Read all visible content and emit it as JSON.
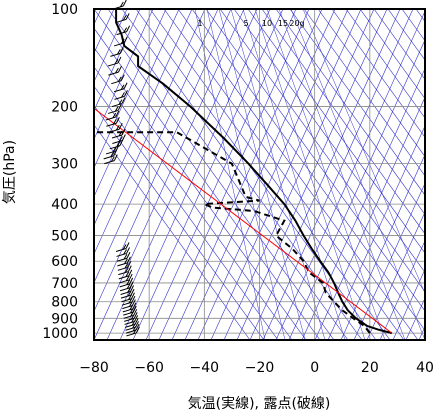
{
  "chart_data": {
    "type": "line",
    "xlabel": "気温(実線), 露点(破線)",
    "ylabel": "気圧(hPa)",
    "xlim": [
      -80,
      40
    ],
    "ylim_hPa": [
      1050,
      100
    ],
    "y_scale": "log",
    "x_ticks": [
      "−80",
      "−60",
      "−40",
      "−20",
      "0",
      "20",
      "40"
    ],
    "x_tick_values": [
      -80,
      -60,
      -40,
      -20,
      0,
      20,
      40
    ],
    "y_ticks": [
      "100",
      "200",
      "300",
      "400",
      "500",
      "600",
      "700",
      "800",
      "900",
      "1000"
    ],
    "y_tick_values": [
      100,
      200,
      300,
      400,
      500,
      600,
      700,
      800,
      900,
      1000
    ],
    "mixing_ratio_labels": [
      "1",
      "5",
      "10",
      "15",
      "20g"
    ],
    "mixing_ratio_values": [
      1,
      5,
      10,
      15,
      20
    ],
    "grid": true,
    "colors": {
      "temperature": "#000000",
      "dewpoint": "#000000",
      "parcel": "#ff0000",
      "background_lines": "#3333cc",
      "grid": "#888888",
      "wind_barbs": "#000000"
    },
    "series": [
      {
        "label": "temperature",
        "style": "solid",
        "points": [
          [
            28,
            1000
          ],
          [
            23,
            975
          ],
          [
            19,
            950
          ],
          [
            15,
            900
          ],
          [
            12,
            850
          ],
          [
            10,
            800
          ],
          [
            8.5,
            750
          ],
          [
            7,
            700
          ],
          [
            5,
            650
          ],
          [
            2,
            600
          ],
          [
            -1,
            550
          ],
          [
            -4,
            500
          ],
          [
            -7,
            450
          ],
          [
            -11,
            400
          ],
          [
            -17,
            350
          ],
          [
            -24,
            300
          ],
          [
            -33,
            250
          ],
          [
            -45,
            200
          ],
          [
            -55,
            170
          ],
          [
            -64,
            150
          ],
          [
            -64,
            140
          ],
          [
            -69,
            130
          ],
          [
            -70,
            120
          ],
          [
            -72,
            110
          ],
          [
            -72,
            100
          ]
        ]
      },
      {
        "label": "dewpoint",
        "style": "dashed",
        "points": [
          [
            20,
            1000
          ],
          [
            18,
            950
          ],
          [
            14,
            900
          ],
          [
            10,
            850
          ],
          [
            7,
            800
          ],
          [
            4,
            750
          ],
          [
            3,
            700
          ],
          [
            -2,
            650
          ],
          [
            -4,
            600
          ],
          [
            -8,
            550
          ],
          [
            -14,
            500
          ],
          [
            -11,
            450
          ],
          [
            -22,
            420
          ],
          [
            -37,
            410
          ],
          [
            -40,
            400
          ],
          [
            -20,
            390
          ],
          [
            -25,
            380
          ],
          [
            -30,
            300
          ],
          [
            -50,
            240
          ],
          [
            -80,
            240
          ]
        ]
      },
      {
        "label": "parcel",
        "style": "solid",
        "points": [
          [
            28,
            1000
          ],
          [
            -88,
            180
          ]
        ]
      }
    ],
    "wind_profile": {
      "upper_barbs_hPa": [
        100,
        110,
        120,
        130,
        140,
        150,
        160,
        170,
        180,
        190,
        200,
        210,
        220,
        230,
        240,
        250,
        260,
        270,
        280,
        290,
        300
      ],
      "lower_barbs_hPa": [
        560,
        580,
        600,
        620,
        640,
        660,
        680,
        700,
        720,
        740,
        760,
        780,
        800,
        820,
        840,
        860,
        880,
        900,
        920,
        940,
        960,
        980,
        1000,
        1020
      ]
    }
  }
}
